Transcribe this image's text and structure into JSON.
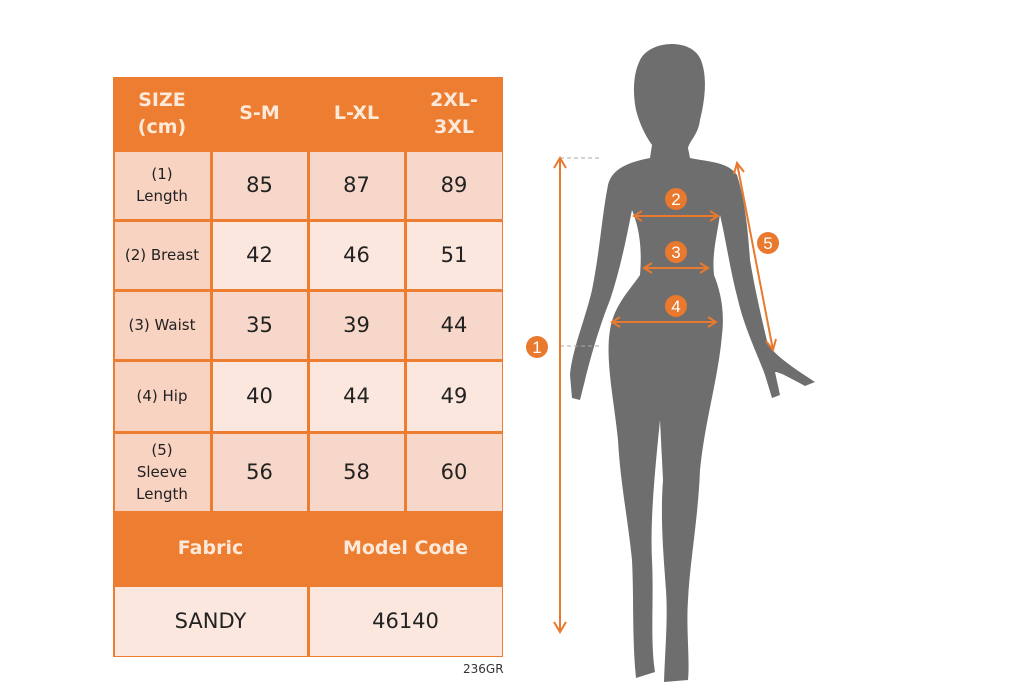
{
  "table": {
    "header": [
      "SIZE\n(cm)",
      "S-M",
      "L-XL",
      "2XL-\n3XL"
    ],
    "rows": [
      {
        "label": "(1)\nLength",
        "values": [
          "85",
          "87",
          "89"
        ]
      },
      {
        "label": "(2) Breast",
        "values": [
          "42",
          "46",
          "51"
        ]
      },
      {
        "label": "(3) Waist",
        "values": [
          "35",
          "39",
          "44"
        ]
      },
      {
        "label": "(4) Hip",
        "values": [
          "40",
          "44",
          "49"
        ]
      },
      {
        "label": "(5)\nSleeve\nLength",
        "values": [
          "56",
          "58",
          "60"
        ]
      }
    ],
    "fabric_label": "Fabric",
    "model_code_label": "Model Code",
    "fabric_value": "SANDY",
    "model_code_value": "46140"
  },
  "footer_code": "236GR",
  "diagram": {
    "markers": [
      "1",
      "2",
      "3",
      "4",
      "5"
    ],
    "accent_color": "#E8792E",
    "silhouette_color": "#6E6E6E"
  }
}
